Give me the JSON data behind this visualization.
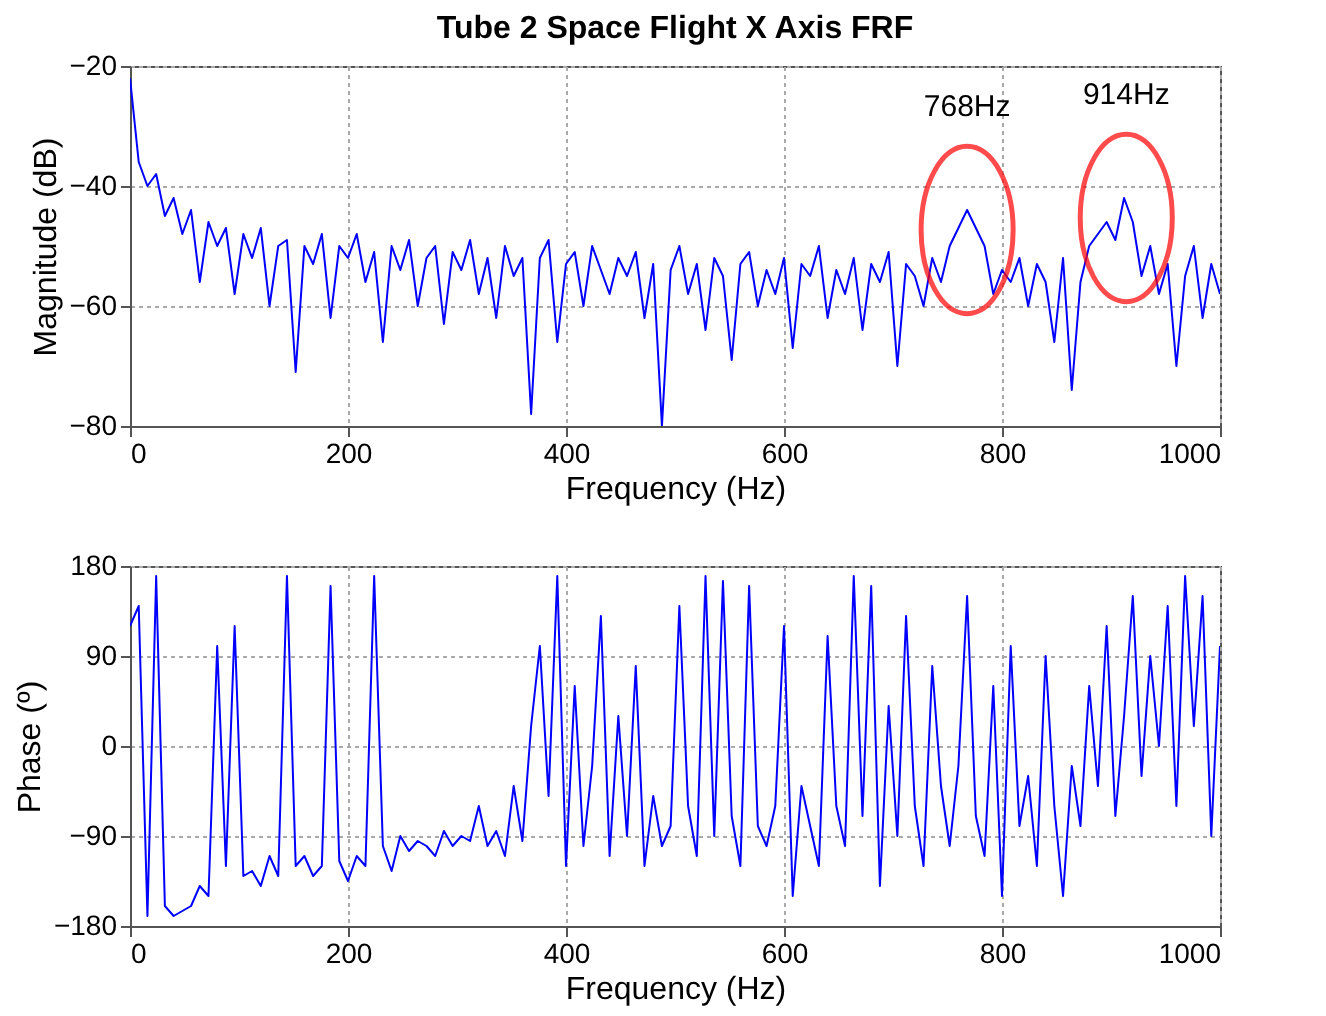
{
  "chart_data": [
    {
      "type": "line",
      "title": "Tube 2 Space Flight X Axis FRF",
      "xlabel": "Frequency (Hz)",
      "ylabel": "Magnitude (dB)",
      "x": [
        0,
        8,
        16,
        24,
        32,
        40,
        48,
        56,
        64,
        72,
        80,
        88,
        96,
        104,
        112,
        120,
        128,
        136,
        144,
        152,
        160,
        168,
        176,
        184,
        192,
        200,
        208,
        216,
        224,
        232,
        240,
        248,
        256,
        264,
        272,
        280,
        288,
        296,
        304,
        312,
        320,
        328,
        336,
        344,
        352,
        360,
        368,
        376,
        384,
        392,
        400,
        408,
        416,
        424,
        432,
        440,
        448,
        456,
        464,
        472,
        480,
        488,
        496,
        504,
        512,
        520,
        528,
        536,
        544,
        552,
        560,
        568,
        576,
        584,
        592,
        600,
        608,
        616,
        624,
        632,
        640,
        648,
        656,
        664,
        672,
        680,
        688,
        696,
        704,
        712,
        720,
        728,
        736,
        744,
        752,
        760,
        768,
        776,
        784,
        792,
        800,
        808,
        816,
        824,
        832,
        840,
        848,
        856,
        864,
        872,
        880,
        888,
        896,
        904,
        912,
        920,
        928,
        936,
        944,
        952,
        960,
        968,
        976,
        984,
        992,
        1000
      ],
      "series": [
        {
          "color": "#0000ff",
          "values": [
            -22,
            -36,
            -40,
            -38,
            -45,
            -42,
            -48,
            -44,
            -56,
            -46,
            -50,
            -47,
            -58,
            -48,
            -52,
            -47,
            -60,
            -50,
            -49,
            -71,
            -50,
            -53,
            -48,
            -62,
            -50,
            -52,
            -48,
            -56,
            -51,
            -66,
            -50,
            -54,
            -49,
            -60,
            -52,
            -50,
            -63,
            -51,
            -54,
            -49,
            -58,
            -52,
            -62,
            -50,
            -55,
            -52,
            -78,
            -52,
            -49,
            -66,
            -53,
            -51,
            -60,
            -50,
            -54,
            -58,
            -52,
            -55,
            -51,
            -62,
            -53,
            -80,
            -54,
            -50,
            -58,
            -53,
            -64,
            -52,
            -55,
            -69,
            -53,
            -51,
            -60,
            -54,
            -58,
            -52,
            -67,
            -53,
            -55,
            -50,
            -62,
            -54,
            -58,
            -52,
            -64,
            -53,
            -56,
            -51,
            -70,
            -53,
            -55,
            -60,
            -52,
            -56,
            -50,
            -47,
            -44,
            -47,
            -50,
            -58,
            -54,
            -56,
            -52,
            -60,
            -53,
            -56,
            -66,
            -52,
            -74,
            -56,
            -50,
            -48,
            -46,
            -49,
            -42,
            -46,
            -55,
            -50,
            -58,
            -53,
            -70,
            -55,
            -50,
            -62,
            -53,
            -58
          ]
        }
      ],
      "xlim": [
        0,
        1000
      ],
      "xticks": [
        0,
        200,
        400,
        600,
        800,
        1000
      ],
      "ylim": [
        -80,
        -20
      ],
      "yticks": [
        -80,
        -60,
        -40,
        -20
      ],
      "grid": true,
      "annotations": [
        {
          "text": "768Hz",
          "x": 768,
          "y": -44
        },
        {
          "text": "914Hz",
          "x": 914,
          "y": -42
        }
      ]
    },
    {
      "type": "line",
      "xlabel": "Frequency (Hz)",
      "ylabel": "Phase (º)",
      "x": [
        0,
        8,
        16,
        24,
        32,
        40,
        48,
        56,
        64,
        72,
        80,
        88,
        96,
        104,
        112,
        120,
        128,
        136,
        144,
        152,
        160,
        168,
        176,
        184,
        192,
        200,
        208,
        216,
        224,
        232,
        240,
        248,
        256,
        264,
        272,
        280,
        288,
        296,
        304,
        312,
        320,
        328,
        336,
        344,
        352,
        360,
        368,
        376,
        384,
        392,
        400,
        408,
        416,
        424,
        432,
        440,
        448,
        456,
        464,
        472,
        480,
        488,
        496,
        504,
        512,
        520,
        528,
        536,
        544,
        552,
        560,
        568,
        576,
        584,
        592,
        600,
        608,
        616,
        624,
        632,
        640,
        648,
        656,
        664,
        672,
        680,
        688,
        696,
        704,
        712,
        720,
        728,
        736,
        744,
        752,
        760,
        768,
        776,
        784,
        792,
        800,
        808,
        816,
        824,
        832,
        840,
        848,
        856,
        864,
        872,
        880,
        888,
        896,
        904,
        912,
        920,
        928,
        936,
        944,
        952,
        960,
        968,
        976,
        984,
        992,
        1000
      ],
      "series": [
        {
          "color": "#0000ff",
          "values": [
            120,
            140,
            -170,
            170,
            -160,
            -170,
            -165,
            -160,
            -140,
            -150,
            100,
            -120,
            120,
            -130,
            -125,
            -140,
            -110,
            -130,
            170,
            -120,
            -110,
            -130,
            -120,
            160,
            -115,
            -135,
            -110,
            -120,
            170,
            -100,
            -125,
            -90,
            -105,
            -95,
            -100,
            -110,
            -85,
            -100,
            -90,
            -95,
            -60,
            -100,
            -85,
            -110,
            -40,
            -95,
            20,
            100,
            -50,
            170,
            -120,
            60,
            -100,
            -20,
            130,
            -110,
            30,
            -90,
            80,
            -120,
            -50,
            -100,
            -80,
            140,
            -60,
            -110,
            170,
            -90,
            165,
            -70,
            -120,
            160,
            -80,
            -100,
            -60,
            120,
            -150,
            -40,
            -80,
            -120,
            110,
            -60,
            -100,
            170,
            -70,
            160,
            -140,
            40,
            -90,
            130,
            -60,
            -120,
            80,
            -40,
            -100,
            -20,
            150,
            -70,
            -110,
            60,
            -150,
            100,
            -80,
            -30,
            -120,
            90,
            -60,
            -150,
            -20,
            -80,
            60,
            -40,
            120,
            -70,
            30,
            150,
            -30,
            90,
            0,
            140,
            -60,
            170,
            20,
            150,
            -90,
            100
          ]
        }
      ],
      "xlim": [
        0,
        1000
      ],
      "xticks": [
        0,
        200,
        400,
        600,
        800,
        1000
      ],
      "ylim": [
        -180,
        180
      ],
      "yticks": [
        -180,
        -90,
        0,
        90,
        180
      ],
      "grid": true
    }
  ]
}
